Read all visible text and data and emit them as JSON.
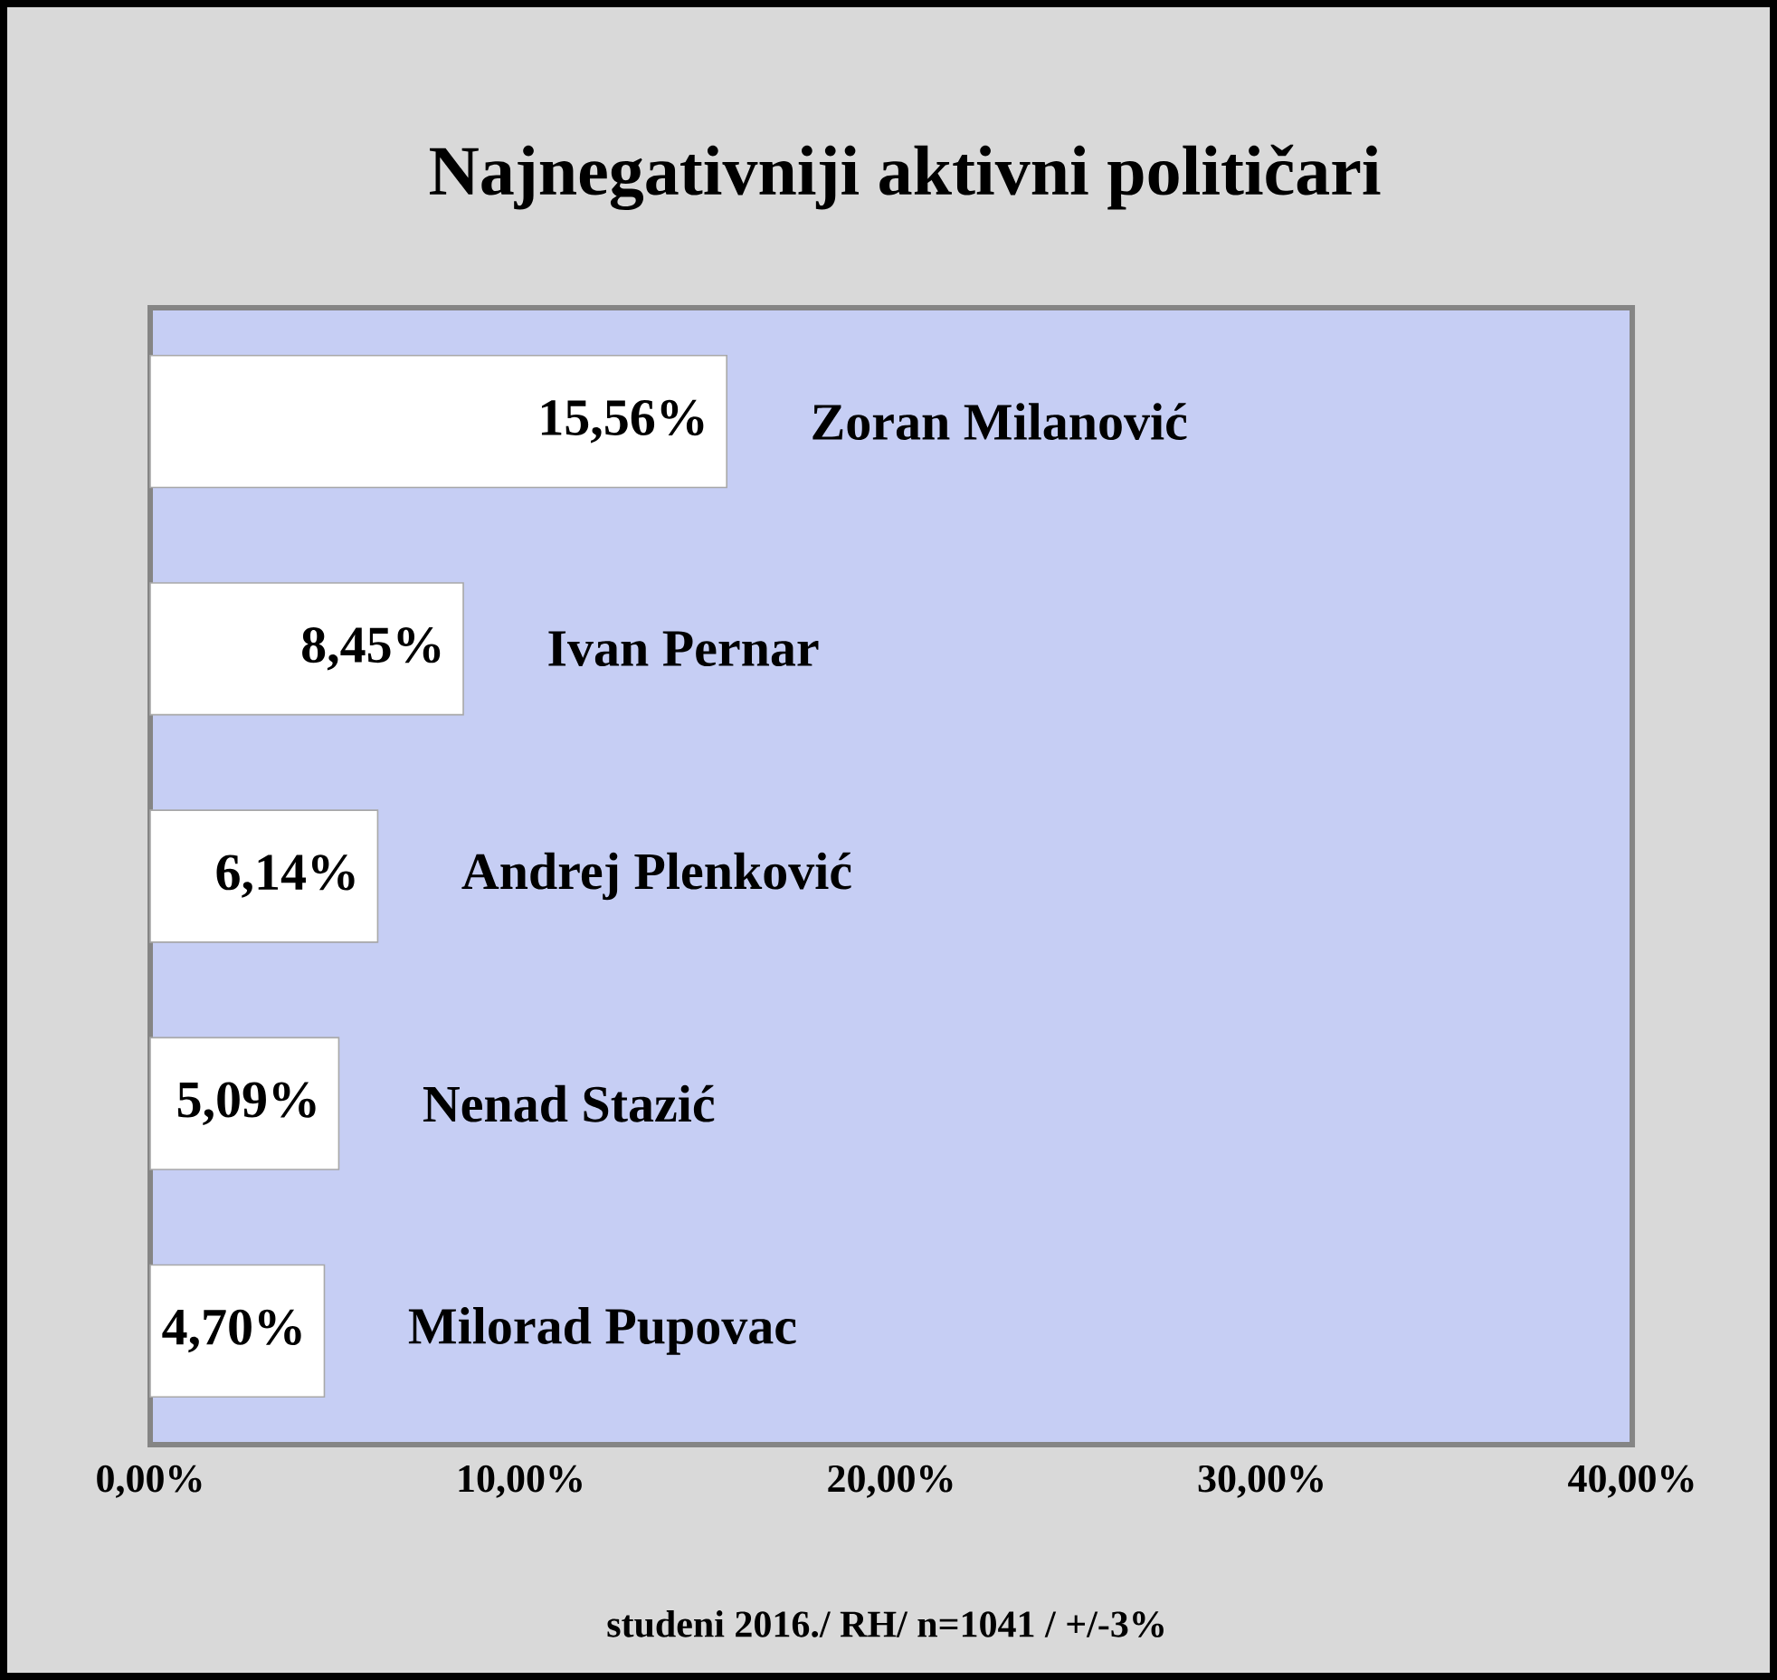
{
  "chart_data": {
    "type": "bar",
    "orientation": "horizontal",
    "title": "Najnegativniji aktivni političari",
    "categories": [
      "Zoran Milanović",
      "Ivan Pernar",
      "Andrej Plenković",
      "Nenad Stazić",
      "Milorad Pupovac"
    ],
    "values": [
      15.56,
      8.45,
      6.14,
      5.09,
      4.7
    ],
    "value_labels": [
      "15,56%",
      "8,45%",
      "6,14%",
      "5,09%",
      "4,70%"
    ],
    "color": "#ffffff",
    "xlim": [
      0,
      40
    ],
    "xticks": [
      {
        "value": 0,
        "label": "0,00%"
      },
      {
        "value": 10,
        "label": "10,00%"
      },
      {
        "value": 20,
        "label": "20,00%"
      },
      {
        "value": 30,
        "label": "30,00%"
      },
      {
        "value": 40,
        "label": "40,00%"
      }
    ],
    "annotations": [
      "studeni 2016./ RH/ n=1041 / +/-3%"
    ]
  }
}
